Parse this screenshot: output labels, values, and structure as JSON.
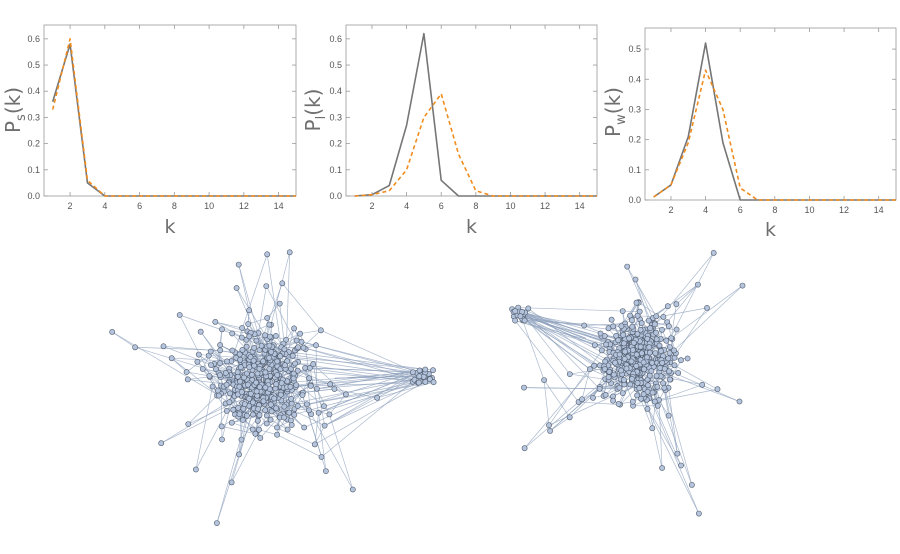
{
  "chart_data": [
    {
      "type": "line",
      "xlabel": "k",
      "ylabel": {
        "main": "P",
        "sub": "s",
        "arg": "(k)"
      },
      "xlim": [
        0.5,
        15
      ],
      "ylim": [
        0,
        0.63
      ],
      "xticks": [
        2,
        4,
        6,
        8,
        10,
        12,
        14
      ],
      "yticks": [
        0.0,
        0.1,
        0.2,
        0.3,
        0.4,
        0.5,
        0.6
      ],
      "ytick_labels": [
        "0.0",
        "0.1",
        "0.2",
        "0.3",
        "0.4",
        "0.5",
        "0.6"
      ],
      "grid": false,
      "series": [
        {
          "color": "#767676",
          "dash": "solid",
          "x": [
            1,
            2,
            3,
            4,
            5,
            6,
            7,
            8,
            9,
            10,
            11,
            12,
            13,
            14,
            15
          ],
          "y": [
            0.36,
            0.58,
            0.05,
            0.0,
            0,
            0,
            0,
            0,
            0,
            0,
            0,
            0,
            0,
            0,
            0
          ]
        },
        {
          "color": "#f08c1e",
          "dash": "dashed",
          "x": [
            1,
            2,
            3,
            4,
            5,
            6,
            7,
            8,
            9,
            10,
            11,
            12,
            13,
            14,
            15
          ],
          "y": [
            0.33,
            0.6,
            0.06,
            0.0,
            0,
            0,
            0,
            0,
            0,
            0,
            0,
            0,
            0,
            0,
            0
          ]
        }
      ]
    },
    {
      "type": "line",
      "xlabel": "k",
      "ylabel": {
        "main": "P",
        "sub": "l",
        "arg": "(k)"
      },
      "xlim": [
        0.5,
        15
      ],
      "ylim": [
        0,
        0.63
      ],
      "xticks": [
        2,
        4,
        6,
        8,
        10,
        12,
        14
      ],
      "yticks": [
        0.0,
        0.1,
        0.2,
        0.3,
        0.4,
        0.5,
        0.6
      ],
      "ytick_labels": [
        "0.0",
        "0.1",
        "0.2",
        "0.3",
        "0.4",
        "0.5",
        "0.6"
      ],
      "grid": false,
      "series": [
        {
          "color": "#767676",
          "dash": "solid",
          "x": [
            1,
            2,
            3,
            4,
            5,
            6,
            7,
            8,
            9,
            10,
            11,
            12,
            13,
            14,
            15
          ],
          "y": [
            0.0,
            0.005,
            0.04,
            0.27,
            0.62,
            0.06,
            0.0,
            0,
            0,
            0,
            0,
            0,
            0,
            0,
            0
          ]
        },
        {
          "color": "#f08c1e",
          "dash": "dashed",
          "x": [
            1,
            2,
            3,
            4,
            5,
            6,
            7,
            8,
            9,
            10,
            11,
            12,
            13,
            14,
            15
          ],
          "y": [
            0.0,
            0.005,
            0.02,
            0.1,
            0.3,
            0.39,
            0.16,
            0.02,
            0.0,
            0,
            0,
            0,
            0,
            0,
            0
          ]
        }
      ]
    },
    {
      "type": "line",
      "xlabel": "k",
      "ylabel": {
        "main": "P",
        "sub": "w",
        "arg": "(k)"
      },
      "xlim": [
        0.5,
        15
      ],
      "ylim": [
        0,
        0.55
      ],
      "xticks": [
        2,
        4,
        6,
        8,
        10,
        12,
        14
      ],
      "yticks": [
        0.0,
        0.1,
        0.2,
        0.3,
        0.4,
        0.5
      ],
      "ytick_labels": [
        "0.0",
        "0.1",
        "0.2",
        "0.3",
        "0.4",
        "0.5"
      ],
      "grid": false,
      "series": [
        {
          "color": "#767676",
          "dash": "solid",
          "x": [
            1,
            2,
            3,
            4,
            5,
            6,
            7,
            8,
            9,
            10,
            11,
            12,
            13,
            14,
            15
          ],
          "y": [
            0.01,
            0.05,
            0.21,
            0.52,
            0.19,
            0.0,
            0,
            0,
            0,
            0,
            0,
            0,
            0,
            0,
            0
          ]
        },
        {
          "color": "#f08c1e",
          "dash": "dashed",
          "x": [
            1,
            2,
            3,
            4,
            5,
            6,
            7,
            8,
            9,
            10,
            11,
            12,
            13,
            14,
            15
          ],
          "y": [
            0.01,
            0.05,
            0.19,
            0.43,
            0.3,
            0.04,
            0.0,
            0,
            0,
            0,
            0,
            0,
            0,
            0,
            0
          ]
        }
      ]
    }
  ],
  "networks": {
    "node_color": "#b5c4dd",
    "node_stroke": "#4f5a6b",
    "edge_color": "#8fa2bd"
  }
}
